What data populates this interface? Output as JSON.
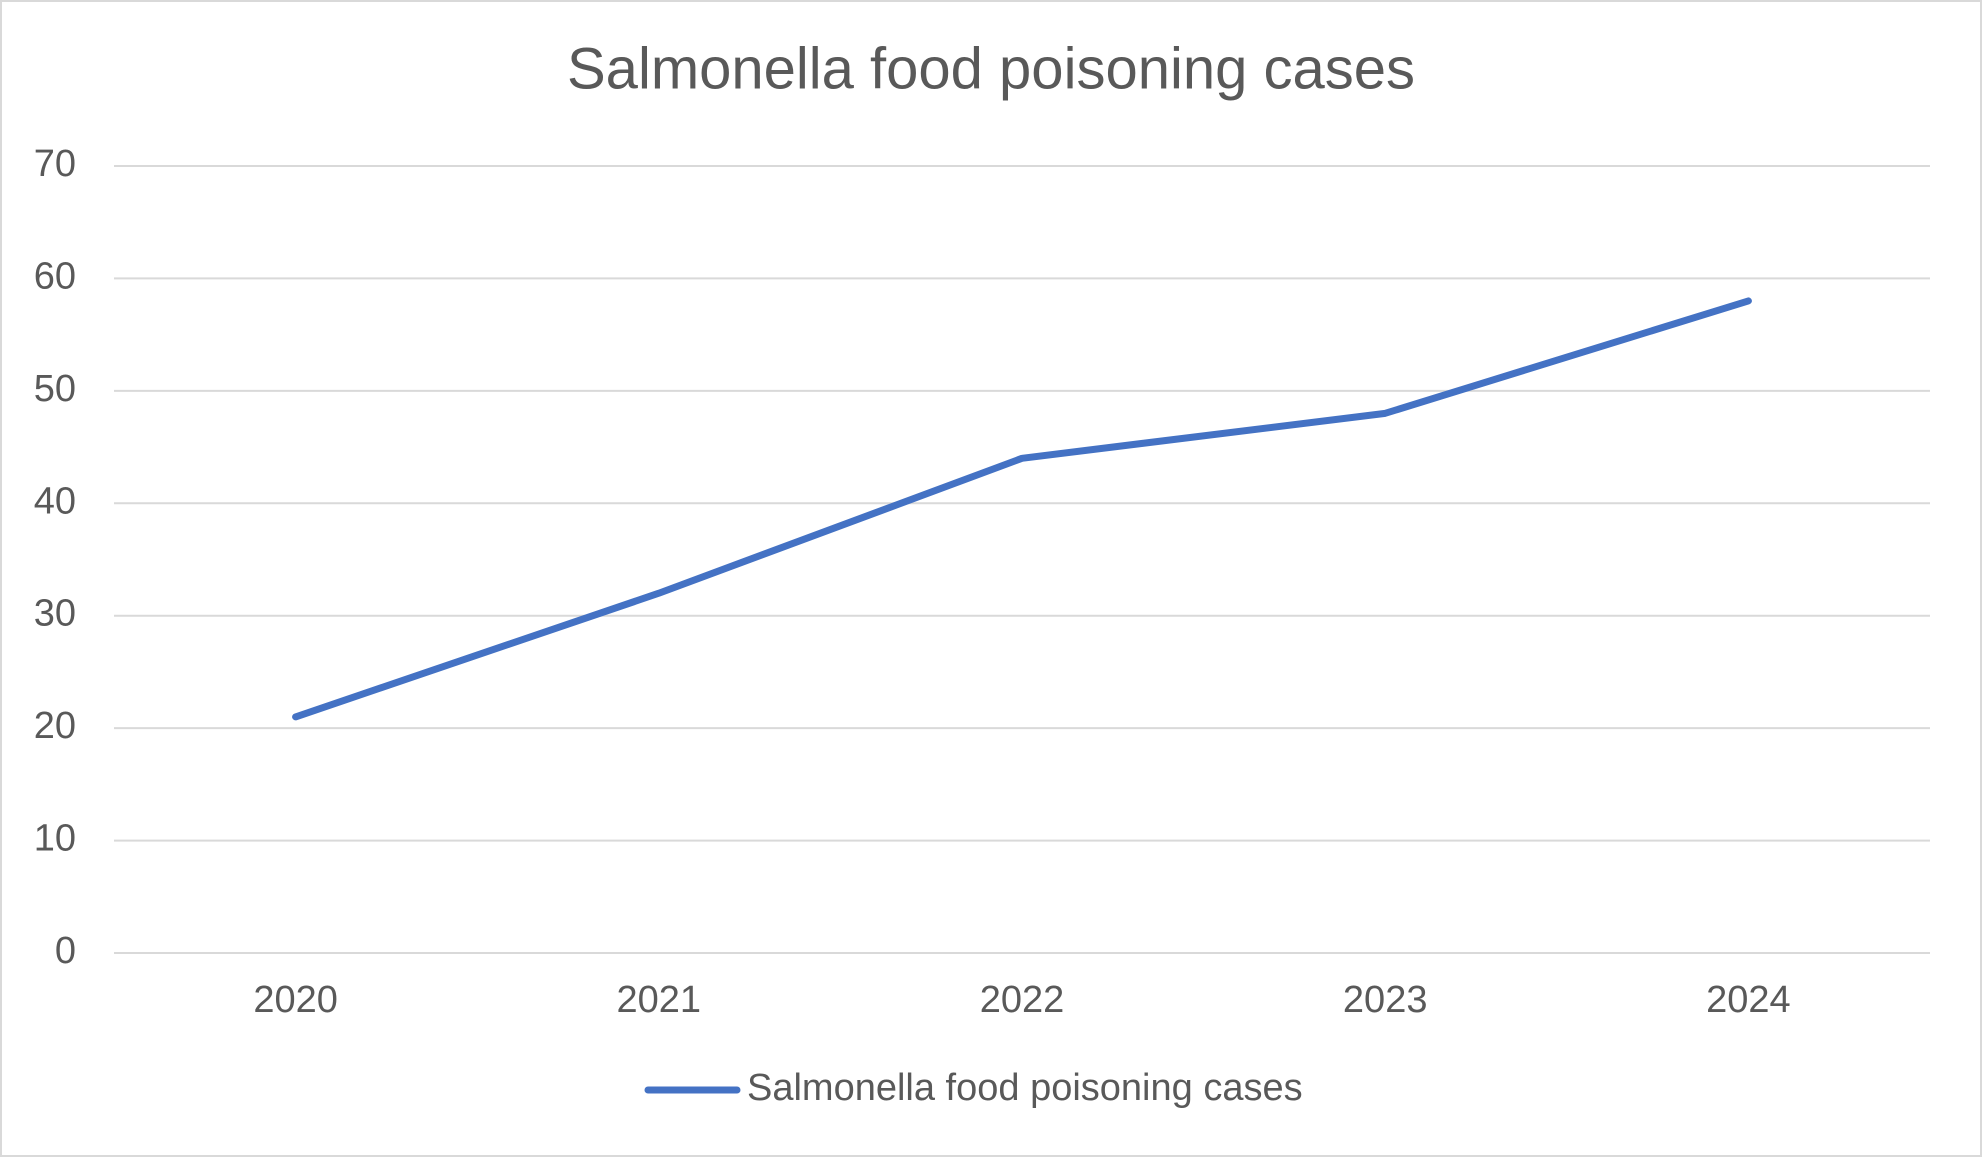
{
  "chart_data": {
    "type": "line",
    "title": "Salmonella food poisoning cases",
    "categories": [
      "2020",
      "2021",
      "2022",
      "2023",
      "2024"
    ],
    "series": [
      {
        "name": "Salmonella food poisoning cases",
        "color": "#4472c4",
        "values": [
          21,
          32,
          44,
          48,
          58
        ]
      }
    ],
    "ylim": [
      0,
      70
    ],
    "yticks": [
      0,
      10,
      20,
      30,
      40,
      50,
      60,
      70
    ],
    "grid": true,
    "legend": "bottom"
  }
}
